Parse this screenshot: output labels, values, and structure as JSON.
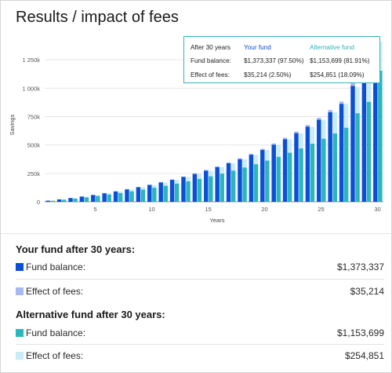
{
  "page": {
    "title": "Results / impact of fees"
  },
  "colors": {
    "your_fund": "#0a4fd6",
    "your_fund_fees": "#a7b9f2",
    "alt_fund": "#2bb5bd",
    "alt_fund_fees": "#c9ecf8"
  },
  "tooltip": {
    "header": "After 30 years",
    "your_fund_label": "Your fund",
    "alt_fund_label": "Alternative fund",
    "rows": [
      {
        "label": "Fund balance:",
        "your": "$1,373,337 (97.50%)",
        "alt": "$1,153,699 (81.91%)"
      },
      {
        "label": "Effect of fees:",
        "your": "$35,214 (2.50%)",
        "alt": "$254,851 (18.09%)"
      }
    ]
  },
  "chart_data": {
    "type": "bar",
    "stacked": true,
    "ylabel": "Savings",
    "xlabel": "Years",
    "xticks": [
      5,
      10,
      15,
      20,
      25,
      30
    ],
    "yticks": [
      0,
      250000,
      500000,
      750000,
      1000000,
      1250000
    ],
    "ytick_labels": [
      "0",
      "250k",
      "500k",
      "750k",
      "1 000k",
      "1 250k"
    ],
    "ylim": [
      0,
      1410000
    ],
    "x": [
      1,
      2,
      3,
      4,
      5,
      6,
      7,
      8,
      9,
      10,
      11,
      12,
      13,
      14,
      15,
      16,
      17,
      18,
      19,
      20,
      21,
      22,
      23,
      24,
      25,
      26,
      27,
      28,
      29,
      30
    ],
    "series": [
      {
        "name": "Your fund",
        "stack": "your",
        "values": [
          10000,
          21000,
          33000,
          46000,
          60000,
          75000,
          91000,
          109000,
          128000,
          148000,
          170000,
          193000,
          218000,
          245000,
          274000,
          305000,
          339000,
          375000,
          414000,
          456000,
          502000,
          551000,
          604000,
          661000,
          722000,
          789000,
          862000,
          1020000,
          1170000,
          1373337
        ]
      },
      {
        "name": "Effect of fees",
        "stack": "your",
        "values": [
          500,
          800,
          1100,
          1400,
          1700,
          2000,
          2400,
          2800,
          3200,
          3700,
          4200,
          4700,
          5300,
          5900,
          6500,
          7200,
          8000,
          8800,
          9700,
          10700,
          11800,
          13000,
          14300,
          15700,
          17200,
          18900,
          20700,
          26000,
          30000,
          35214
        ]
      },
      {
        "name": "Alternative fund",
        "stack": "alt",
        "values": [
          9000,
          18000,
          28000,
          39000,
          51000,
          64000,
          77000,
          92000,
          107000,
          124000,
          141000,
          160000,
          180000,
          201000,
          224000,
          248000,
          274000,
          302000,
          331000,
          363000,
          396000,
          432000,
          470000,
          511000,
          555000,
          602000,
          652000,
          780000,
          880000,
          1153699
        ]
      },
      {
        "name": "Effect of fees",
        "stack": "alt",
        "values": [
          1000,
          3000,
          5000,
          7000,
          9000,
          11000,
          14000,
          17000,
          21000,
          24000,
          29000,
          33000,
          38000,
          44000,
          50000,
          57000,
          65000,
          73000,
          83000,
          93000,
          106000,
          119000,
          134000,
          150000,
          167000,
          187000,
          210000,
          230000,
          260000,
          254851
        ]
      }
    ]
  },
  "summary": {
    "your_title": "Your fund after 30 years:",
    "your_balance_label": "Fund balance:",
    "your_balance_value": "$1,373,337",
    "your_fees_label": "Effect of fees:",
    "your_fees_value": "$35,214",
    "alt_title": "Alternative fund after 30 years:",
    "alt_balance_label": "Fund balance:",
    "alt_balance_value": "$1,153,699",
    "alt_fees_label": "Effect of fees:",
    "alt_fees_value": "$254,851"
  }
}
